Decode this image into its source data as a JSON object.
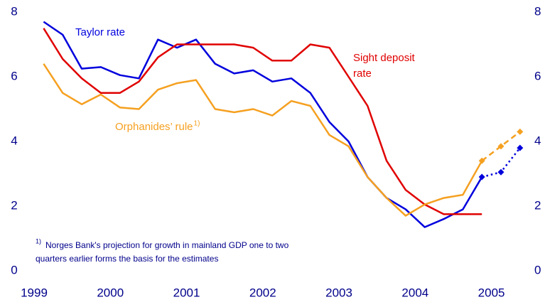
{
  "chart_data": {
    "type": "line",
    "xlim": [
      1999,
      2005.47
    ],
    "xticks": [
      1999,
      2000,
      2001,
      2002,
      2003,
      2004,
      2005
    ],
    "ylim": [
      0,
      8
    ],
    "yticks": [
      0,
      2,
      4,
      6,
      8
    ],
    "y2lim": [
      0,
      8
    ],
    "y2ticks": [
      0,
      2,
      4,
      6,
      8
    ],
    "x": [
      1999.125,
      1999.375,
      1999.625,
      1999.875,
      2000.125,
      2000.375,
      2000.625,
      2000.875,
      2001.125,
      2001.375,
      2001.625,
      2001.875,
      2002.125,
      2002.375,
      2002.625,
      2002.875,
      2003.125,
      2003.375,
      2003.625,
      2003.875,
      2004.125,
      2004.375,
      2004.625,
      2004.875
    ],
    "series": [
      {
        "name": "Taylor rate",
        "color": "#0000dd",
        "values": [
          7.7,
          7.3,
          6.25,
          6.3,
          6.05,
          5.95,
          7.15,
          6.9,
          7.15,
          6.4,
          6.1,
          6.2,
          5.85,
          5.95,
          5.5,
          4.6,
          4.0,
          2.9,
          2.25,
          1.9,
          1.35,
          1.6,
          1.9,
          2.9
        ]
      },
      {
        "name": "Sight deposit rate",
        "color": "#e00000",
        "values": [
          7.5,
          6.55,
          5.95,
          5.5,
          5.5,
          5.85,
          6.6,
          7.0,
          7.0,
          7.0,
          7.0,
          6.9,
          6.5,
          6.5,
          7.0,
          6.9,
          6.0,
          5.1,
          3.4,
          2.5,
          2.05,
          1.75,
          1.75,
          1.75
        ]
      },
      {
        "name": "Orphanides’ rule",
        "color": "#f5a020",
        "values": [
          6.4,
          5.5,
          5.15,
          5.45,
          5.05,
          5.0,
          5.6,
          5.8,
          5.9,
          5.0,
          4.9,
          5.0,
          4.8,
          5.25,
          5.1,
          4.2,
          3.85,
          2.9,
          2.25,
          1.7,
          2.05,
          2.25,
          2.35,
          3.4
        ]
      }
    ],
    "projections": [
      {
        "color": "#0000dd",
        "dash": "dotted",
        "x": [
          2004.875,
          2005.125,
          2005.375
        ],
        "values": [
          2.9,
          3.05,
          3.8
        ]
      },
      {
        "color": "#f5a020",
        "dash": "dashed",
        "x": [
          2004.875,
          2005.125,
          2005.375
        ],
        "values": [
          3.4,
          3.85,
          4.3
        ]
      }
    ],
    "note_marker": "1)",
    "footnote": [
      "Norges Bank's projection for growth in mainland GDP one to two",
      "quarters earlier forms the basis for the estimates"
    ]
  }
}
